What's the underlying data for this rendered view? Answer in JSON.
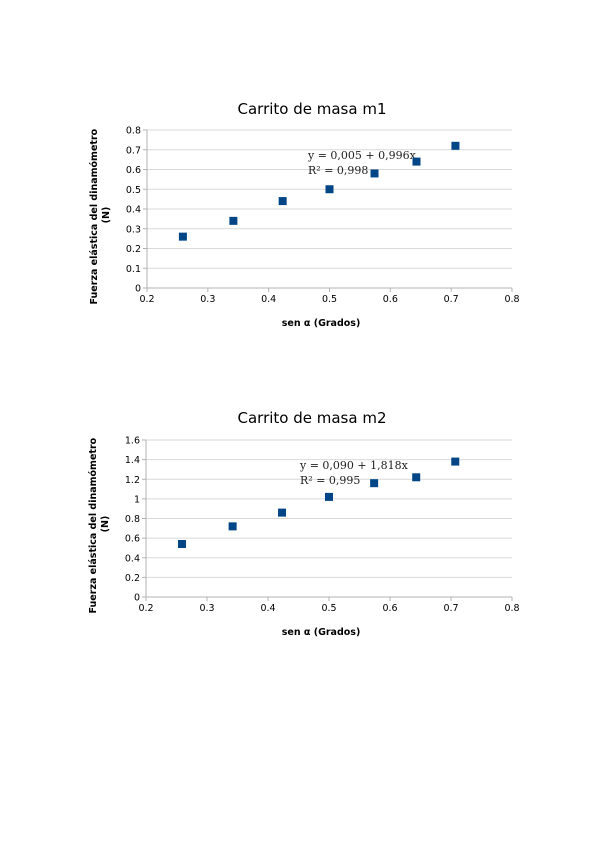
{
  "chart_data": [
    {
      "type": "scatter",
      "title": "Carrito de masa m1",
      "xlabel": "sen α (Grados)",
      "ylabel_lines": [
        "Fuerza elástica del dinamómetro",
        "(N)"
      ],
      "xlim": [
        0.2,
        0.8
      ],
      "ylim": [
        0,
        0.8
      ],
      "xticks": [
        "0.2",
        "0.3",
        "0.4",
        "0.5",
        "0.6",
        "0.7",
        "0.8"
      ],
      "yticks": [
        "0",
        "0.1",
        "0.2",
        "0.3",
        "0.4",
        "0.5",
        "0.6",
        "0.7",
        "0.8"
      ],
      "grid": true,
      "marker": "square",
      "marker_color": "#004586",
      "series": [
        {
          "x": [
            0.259,
            0.342,
            0.423,
            0.5,
            0.574,
            0.643,
            0.707
          ],
          "y": [
            0.26,
            0.34,
            0.44,
            0.5,
            0.58,
            0.64,
            0.72
          ]
        }
      ],
      "annotations": [
        "y = 0,005 + 0,996x",
        "R² = 0,998"
      ]
    },
    {
      "type": "scatter",
      "title": "Carrito de masa m2",
      "xlabel": "sen α (Grados)",
      "ylabel_lines": [
        "Fuerza elástica del dinamómetro",
        "(N)"
      ],
      "xlim": [
        0.2,
        0.8
      ],
      "ylim": [
        0,
        1.6
      ],
      "xticks": [
        "0.2",
        "0.3",
        "0.4",
        "0.5",
        "0.6",
        "0.7",
        "0.8"
      ],
      "yticks": [
        "0",
        "0.2",
        "0.4",
        "0.6",
        "0.8",
        "1",
        "1.2",
        "1.4",
        "1.6"
      ],
      "grid": true,
      "marker": "square",
      "marker_color": "#004586",
      "series": [
        {
          "x": [
            0.259,
            0.342,
            0.423,
            0.5,
            0.574,
            0.643,
            0.707
          ],
          "y": [
            0.54,
            0.72,
            0.86,
            1.02,
            1.16,
            1.22,
            1.38
          ]
        }
      ],
      "annotations": [
        "y = 0,090 + 1,818x",
        "R² = 0,995"
      ]
    }
  ]
}
